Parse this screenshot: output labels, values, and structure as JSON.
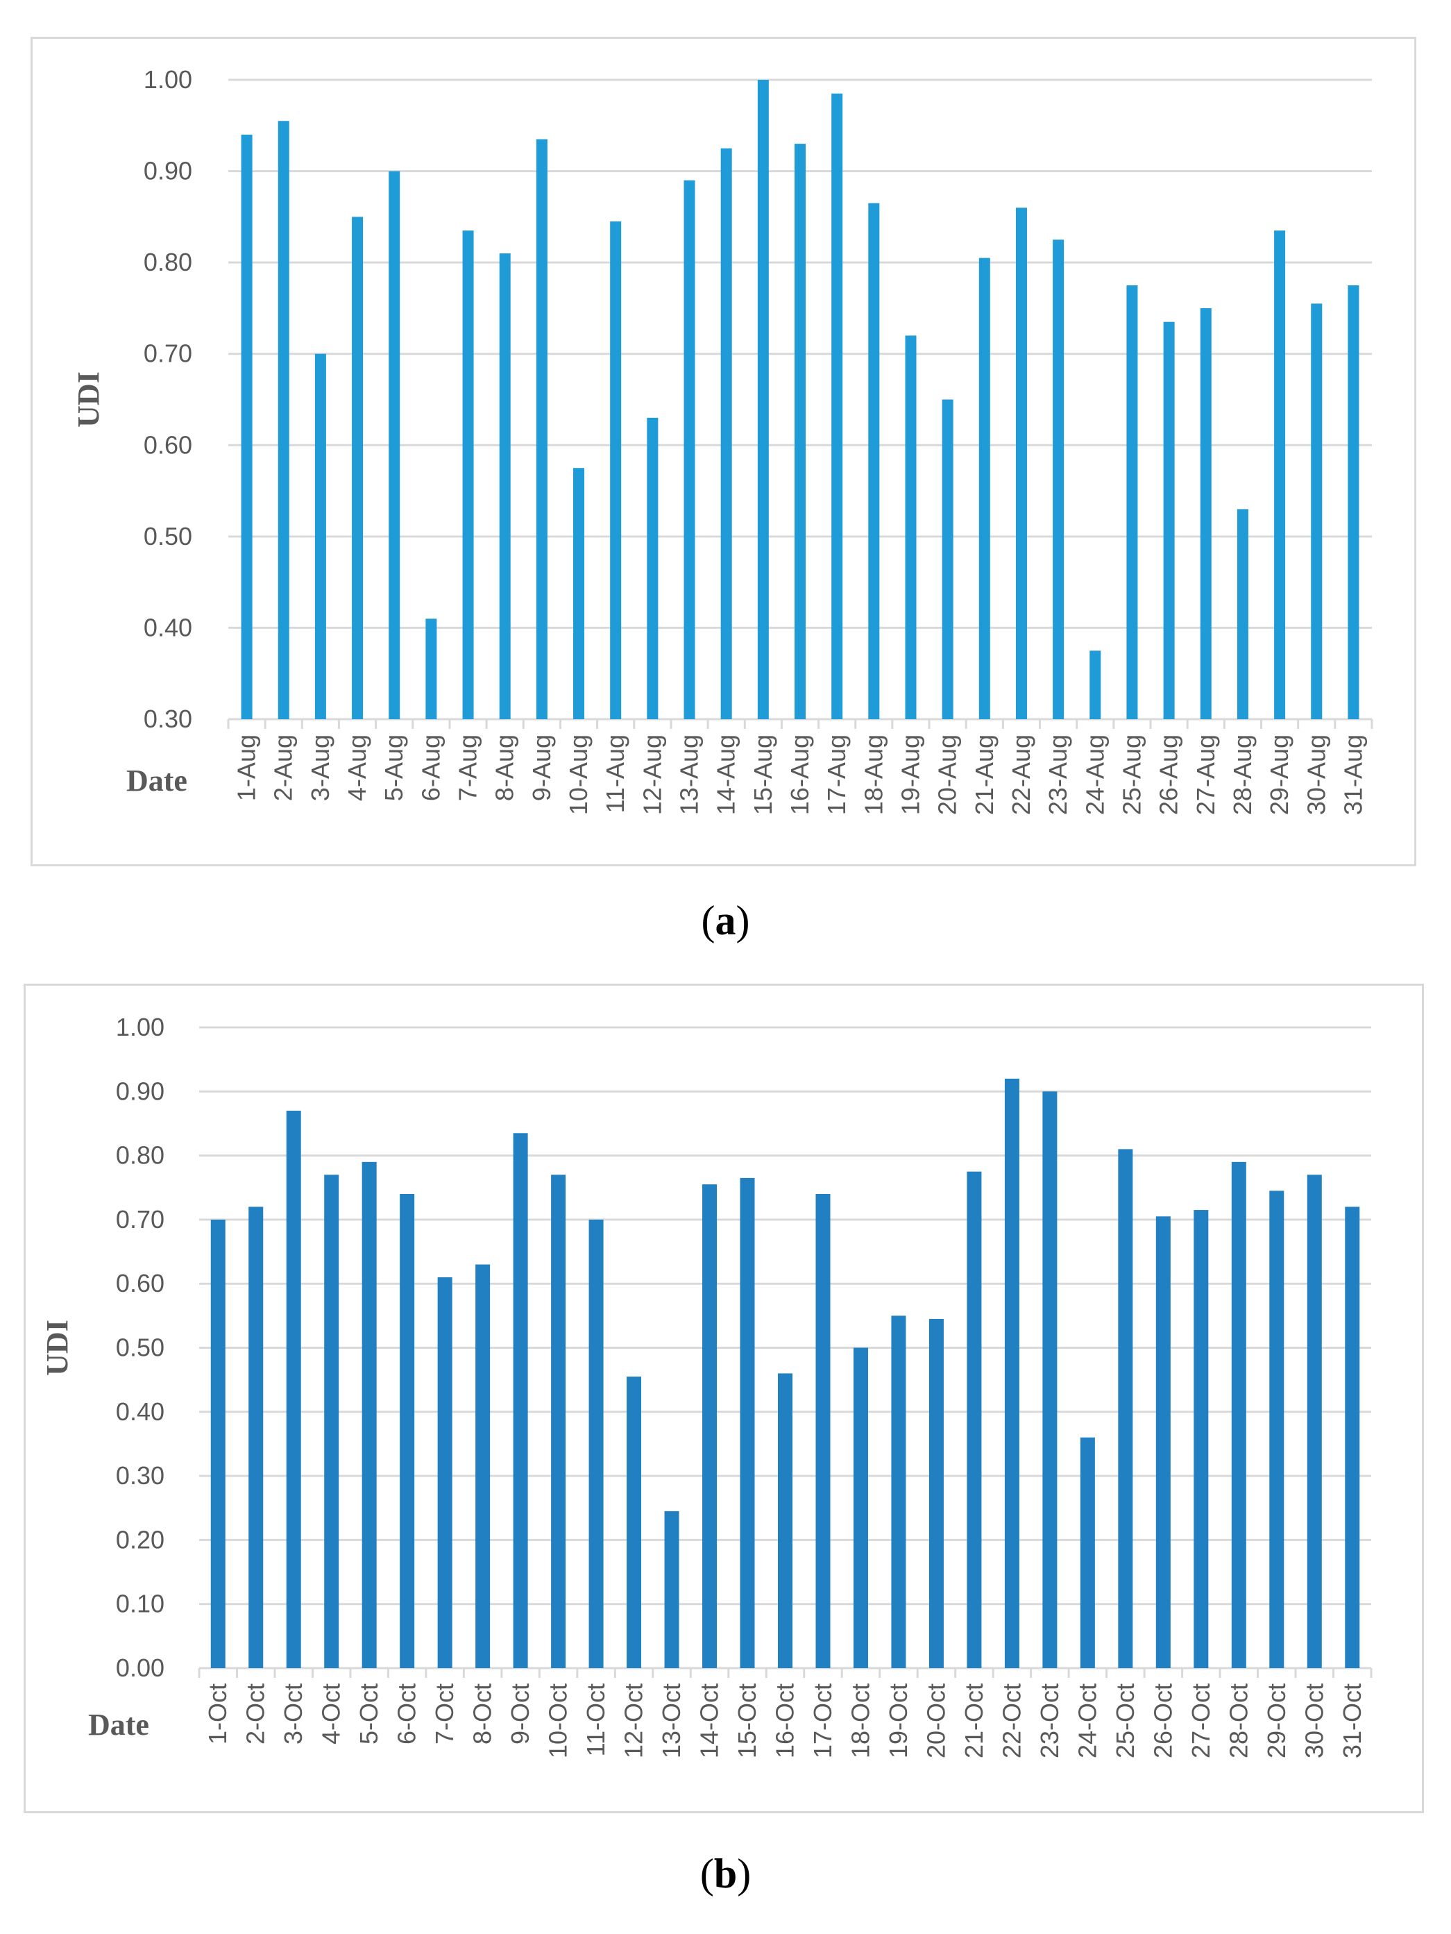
{
  "chart_data": [
    {
      "id": "a",
      "type": "bar",
      "caption_letter": "a",
      "xlabel": "Date",
      "ylabel": "UDI",
      "ylim": [
        0.3,
        1.0
      ],
      "ytick_step": 0.1,
      "ytick_labels": [
        "0.30",
        "0.40",
        "0.50",
        "0.60",
        "0.70",
        "0.80",
        "0.90",
        "1.00"
      ],
      "bar_color": "#1F9BD7",
      "categories": [
        "1-Aug",
        "2-Aug",
        "3-Aug",
        "4-Aug",
        "5-Aug",
        "6-Aug",
        "7-Aug",
        "8-Aug",
        "9-Aug",
        "10-Aug",
        "11-Aug",
        "12-Aug",
        "13-Aug",
        "14-Aug",
        "15-Aug",
        "16-Aug",
        "17-Aug",
        "18-Aug",
        "19-Aug",
        "20-Aug",
        "21-Aug",
        "22-Aug",
        "23-Aug",
        "24-Aug",
        "25-Aug",
        "26-Aug",
        "27-Aug",
        "28-Aug",
        "29-Aug",
        "30-Aug",
        "31-Aug"
      ],
      "values": [
        0.94,
        0.955,
        0.7,
        0.85,
        0.9,
        0.41,
        0.835,
        0.81,
        0.935,
        0.575,
        0.845,
        0.63,
        0.89,
        0.925,
        1.0,
        0.93,
        0.985,
        0.865,
        0.72,
        0.65,
        0.805,
        0.86,
        0.825,
        0.375,
        0.775,
        0.735,
        0.75,
        0.53,
        0.835,
        0.755,
        0.775
      ]
    },
    {
      "id": "b",
      "type": "bar",
      "caption_letter": "b",
      "xlabel": "Date",
      "ylabel": "UDI",
      "ylim": [
        0.0,
        1.0
      ],
      "ytick_step": 0.1,
      "ytick_labels": [
        "0.00",
        "0.10",
        "0.20",
        "0.30",
        "0.40",
        "0.50",
        "0.60",
        "0.70",
        "0.80",
        "0.90",
        "1.00"
      ],
      "bar_color": "#2180C2",
      "categories": [
        "1-Oct",
        "2-Oct",
        "3-Oct",
        "4-Oct",
        "5-Oct",
        "6-Oct",
        "7-Oct",
        "8-Oct",
        "9-Oct",
        "10-Oct",
        "11-Oct",
        "12-Oct",
        "13-Oct",
        "14-Oct",
        "15-Oct",
        "16-Oct",
        "17-Oct",
        "18-Oct",
        "19-Oct",
        "20-Oct",
        "21-Oct",
        "22-Oct",
        "23-Oct",
        "24-Oct",
        "25-Oct",
        "26-Oct",
        "27-Oct",
        "28-Oct",
        "29-Oct",
        "30-Oct",
        "31-Oct"
      ],
      "values": [
        0.7,
        0.72,
        0.87,
        0.77,
        0.79,
        0.74,
        0.61,
        0.63,
        0.835,
        0.77,
        0.7,
        0.455,
        0.245,
        0.755,
        0.765,
        0.46,
        0.74,
        0.5,
        0.55,
        0.545,
        0.775,
        0.92,
        0.9,
        0.36,
        0.81,
        0.705,
        0.715,
        0.79,
        0.745,
        0.77,
        0.72
      ]
    }
  ]
}
